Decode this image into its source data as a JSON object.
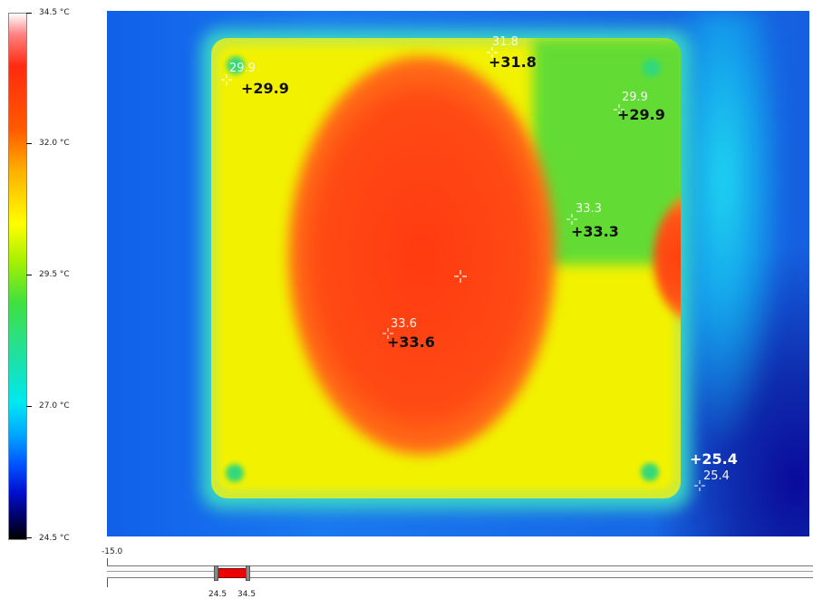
{
  "scale": {
    "max": "34.5 °C",
    "t1": "32.0 °C",
    "t2": "29.5 °C",
    "t3": "27.0 °C",
    "min": "24.5 °C"
  },
  "points": [
    {
      "small": "29.9",
      "big": "+29.9"
    },
    {
      "small": "31.8",
      "big": "+31.8"
    },
    {
      "small": "29.9",
      "big": "+29.9"
    },
    {
      "small": "33.3",
      "big": "+33.3"
    },
    {
      "small": "33.6",
      "big": "+33.6"
    },
    {
      "small": "25.4",
      "big": "+25.4"
    }
  ],
  "range": {
    "min_label": "-15.0",
    "low": "24.5",
    "high": "34.5",
    "fill_color": "#ee0000"
  },
  "icons": [
    "measurement-crosshair-icon",
    "center-cursor-icon",
    "range-handle-icon"
  ]
}
